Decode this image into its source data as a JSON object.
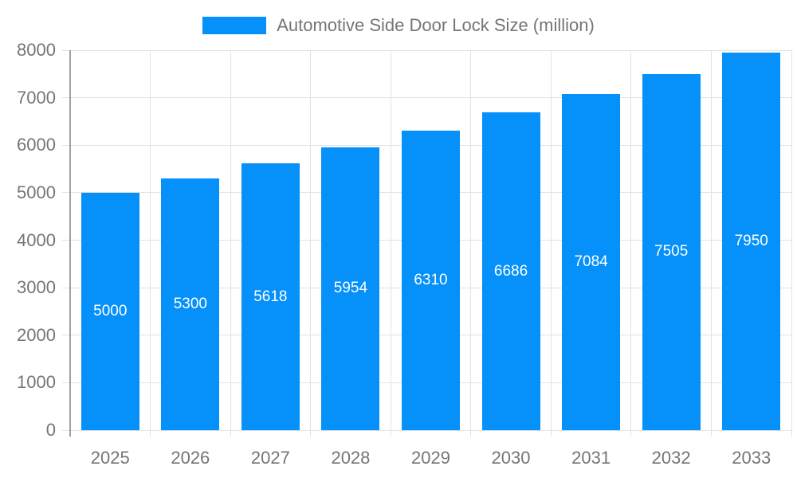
{
  "chart_data": {
    "type": "bar",
    "title": "Automotive Side Door Lock Size (million)",
    "series_name": "Automotive Side Door Lock Size (million)",
    "categories": [
      "2025",
      "2026",
      "2027",
      "2028",
      "2029",
      "2030",
      "2031",
      "2032",
      "2033"
    ],
    "values": [
      5000,
      5300,
      5618,
      5954,
      6310,
      6686,
      7084,
      7505,
      7950
    ],
    "bar_value_labels": [
      "5000",
      "5300",
      "5618",
      "5954",
      "6310",
      "6686",
      "7084",
      "7505",
      "7950"
    ],
    "xlabel": "",
    "ylabel": "",
    "ylim": [
      0,
      8000
    ],
    "ytick_interval": 1000,
    "ytick_labels": [
      "0",
      "1000",
      "2000",
      "3000",
      "4000",
      "5000",
      "6000",
      "7000",
      "8000"
    ],
    "grid": true,
    "legend_position": "top-center",
    "bar_labels_visible": true,
    "colors": {
      "bar": "#0590fa",
      "bar_label": "#ffffff",
      "grid": "#e2e2e2",
      "axis": "#a0a0a0",
      "axis_text": "#757575",
      "background": "#ffffff"
    }
  }
}
